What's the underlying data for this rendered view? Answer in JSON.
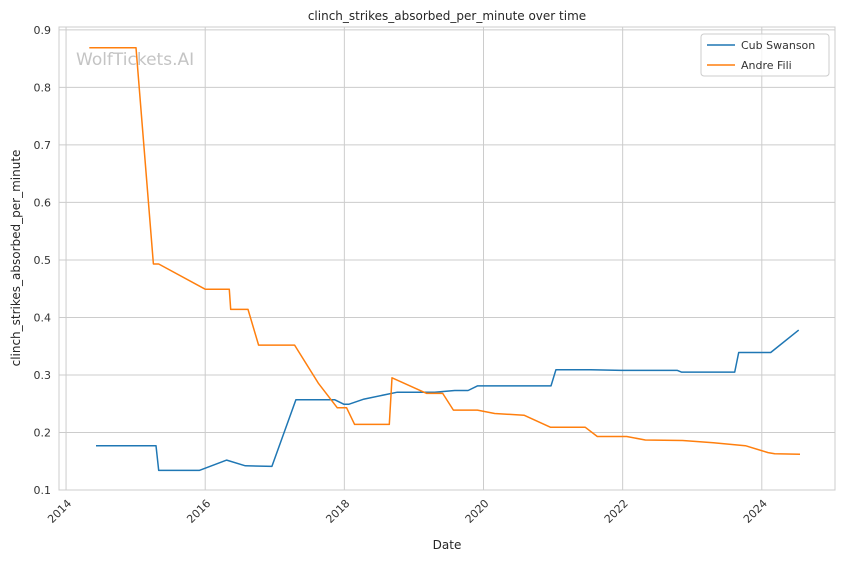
{
  "chart_data": {
    "type": "line",
    "title": "clinch_strikes_absorbed_per_minute over time",
    "xlabel": "Date",
    "ylabel": "clinch_strikes_absorbed_per_minute",
    "watermark": "WolfTickets.AI",
    "xlim": [
      "2013-11-25",
      "2025-01-20"
    ],
    "ylim": [
      0.1,
      0.905
    ],
    "x_ticks": [
      "2014",
      "2016",
      "2018",
      "2020",
      "2022",
      "2024"
    ],
    "y_ticks": [
      "0.1",
      "0.2",
      "0.3",
      "0.4",
      "0.5",
      "0.6",
      "0.7",
      "0.8",
      "0.9"
    ],
    "grid": true,
    "legend_position": "top-right",
    "series": [
      {
        "name": "Cub Swanson",
        "color": "#1f77b4",
        "points": [
          [
            "2014-06-07",
            0.177
          ],
          [
            "2015-04-18",
            0.177
          ],
          [
            "2015-05-02",
            0.134
          ],
          [
            "2015-12-01",
            0.134
          ],
          [
            "2016-04-23",
            0.152
          ],
          [
            "2016-07-30",
            0.142
          ],
          [
            "2016-12-17",
            0.141
          ],
          [
            "2017-04-22",
            0.257
          ],
          [
            "2017-11-11",
            0.257
          ],
          [
            "2017-12-30",
            0.249
          ],
          [
            "2018-01-24",
            0.249
          ],
          [
            "2018-04-14",
            0.258
          ],
          [
            "2018-10-06",
            0.27
          ],
          [
            "2019-04-20",
            0.27
          ],
          [
            "2019-08-03",
            0.273
          ],
          [
            "2019-10-12",
            0.273
          ],
          [
            "2019-11-30",
            0.281
          ],
          [
            "2020-12-21",
            0.281
          ],
          [
            "2021-01-16",
            0.309
          ],
          [
            "2021-07-17",
            0.309
          ],
          [
            "2021-12-25",
            0.308
          ],
          [
            "2022-10-15",
            0.308
          ],
          [
            "2022-11-05",
            0.305
          ],
          [
            "2023-08-12",
            0.305
          ],
          [
            "2023-09-02",
            0.339
          ],
          [
            "2024-02-17",
            0.339
          ],
          [
            "2024-07-13",
            0.378
          ]
        ]
      },
      {
        "name": "Andre Fili",
        "color": "#ff7f0e",
        "points": [
          [
            "2014-05-03",
            0.869
          ],
          [
            "2015-01-03",
            0.869
          ],
          [
            "2015-04-04",
            0.493
          ],
          [
            "2015-05-02",
            0.493
          ],
          [
            "2016-01-02",
            0.449
          ],
          [
            "2016-05-07",
            0.449
          ],
          [
            "2016-05-14",
            0.414
          ],
          [
            "2016-08-13",
            0.414
          ],
          [
            "2016-10-08",
            0.352
          ],
          [
            "2017-04-15",
            0.352
          ],
          [
            "2017-08-19",
            0.285
          ],
          [
            "2017-11-25",
            0.243
          ],
          [
            "2018-01-13",
            0.243
          ],
          [
            "2018-02-24",
            0.214
          ],
          [
            "2018-08-25",
            0.214
          ],
          [
            "2018-09-08",
            0.295
          ],
          [
            "2019-03-09",
            0.268
          ],
          [
            "2019-06-01",
            0.268
          ],
          [
            "2019-07-27",
            0.239
          ],
          [
            "2019-11-30",
            0.239
          ],
          [
            "2020-02-29",
            0.233
          ],
          [
            "2020-08-01",
            0.23
          ],
          [
            "2020-12-19",
            0.209
          ],
          [
            "2021-06-19",
            0.209
          ],
          [
            "2021-08-21",
            0.193
          ],
          [
            "2022-01-22",
            0.193
          ],
          [
            "2022-04-30",
            0.187
          ],
          [
            "2022-11-12",
            0.186
          ],
          [
            "2023-04-22",
            0.182
          ],
          [
            "2023-10-07",
            0.177
          ],
          [
            "2024-02-03",
            0.165
          ],
          [
            "2024-03-09",
            0.163
          ],
          [
            "2024-07-20",
            0.162
          ]
        ]
      }
    ]
  }
}
